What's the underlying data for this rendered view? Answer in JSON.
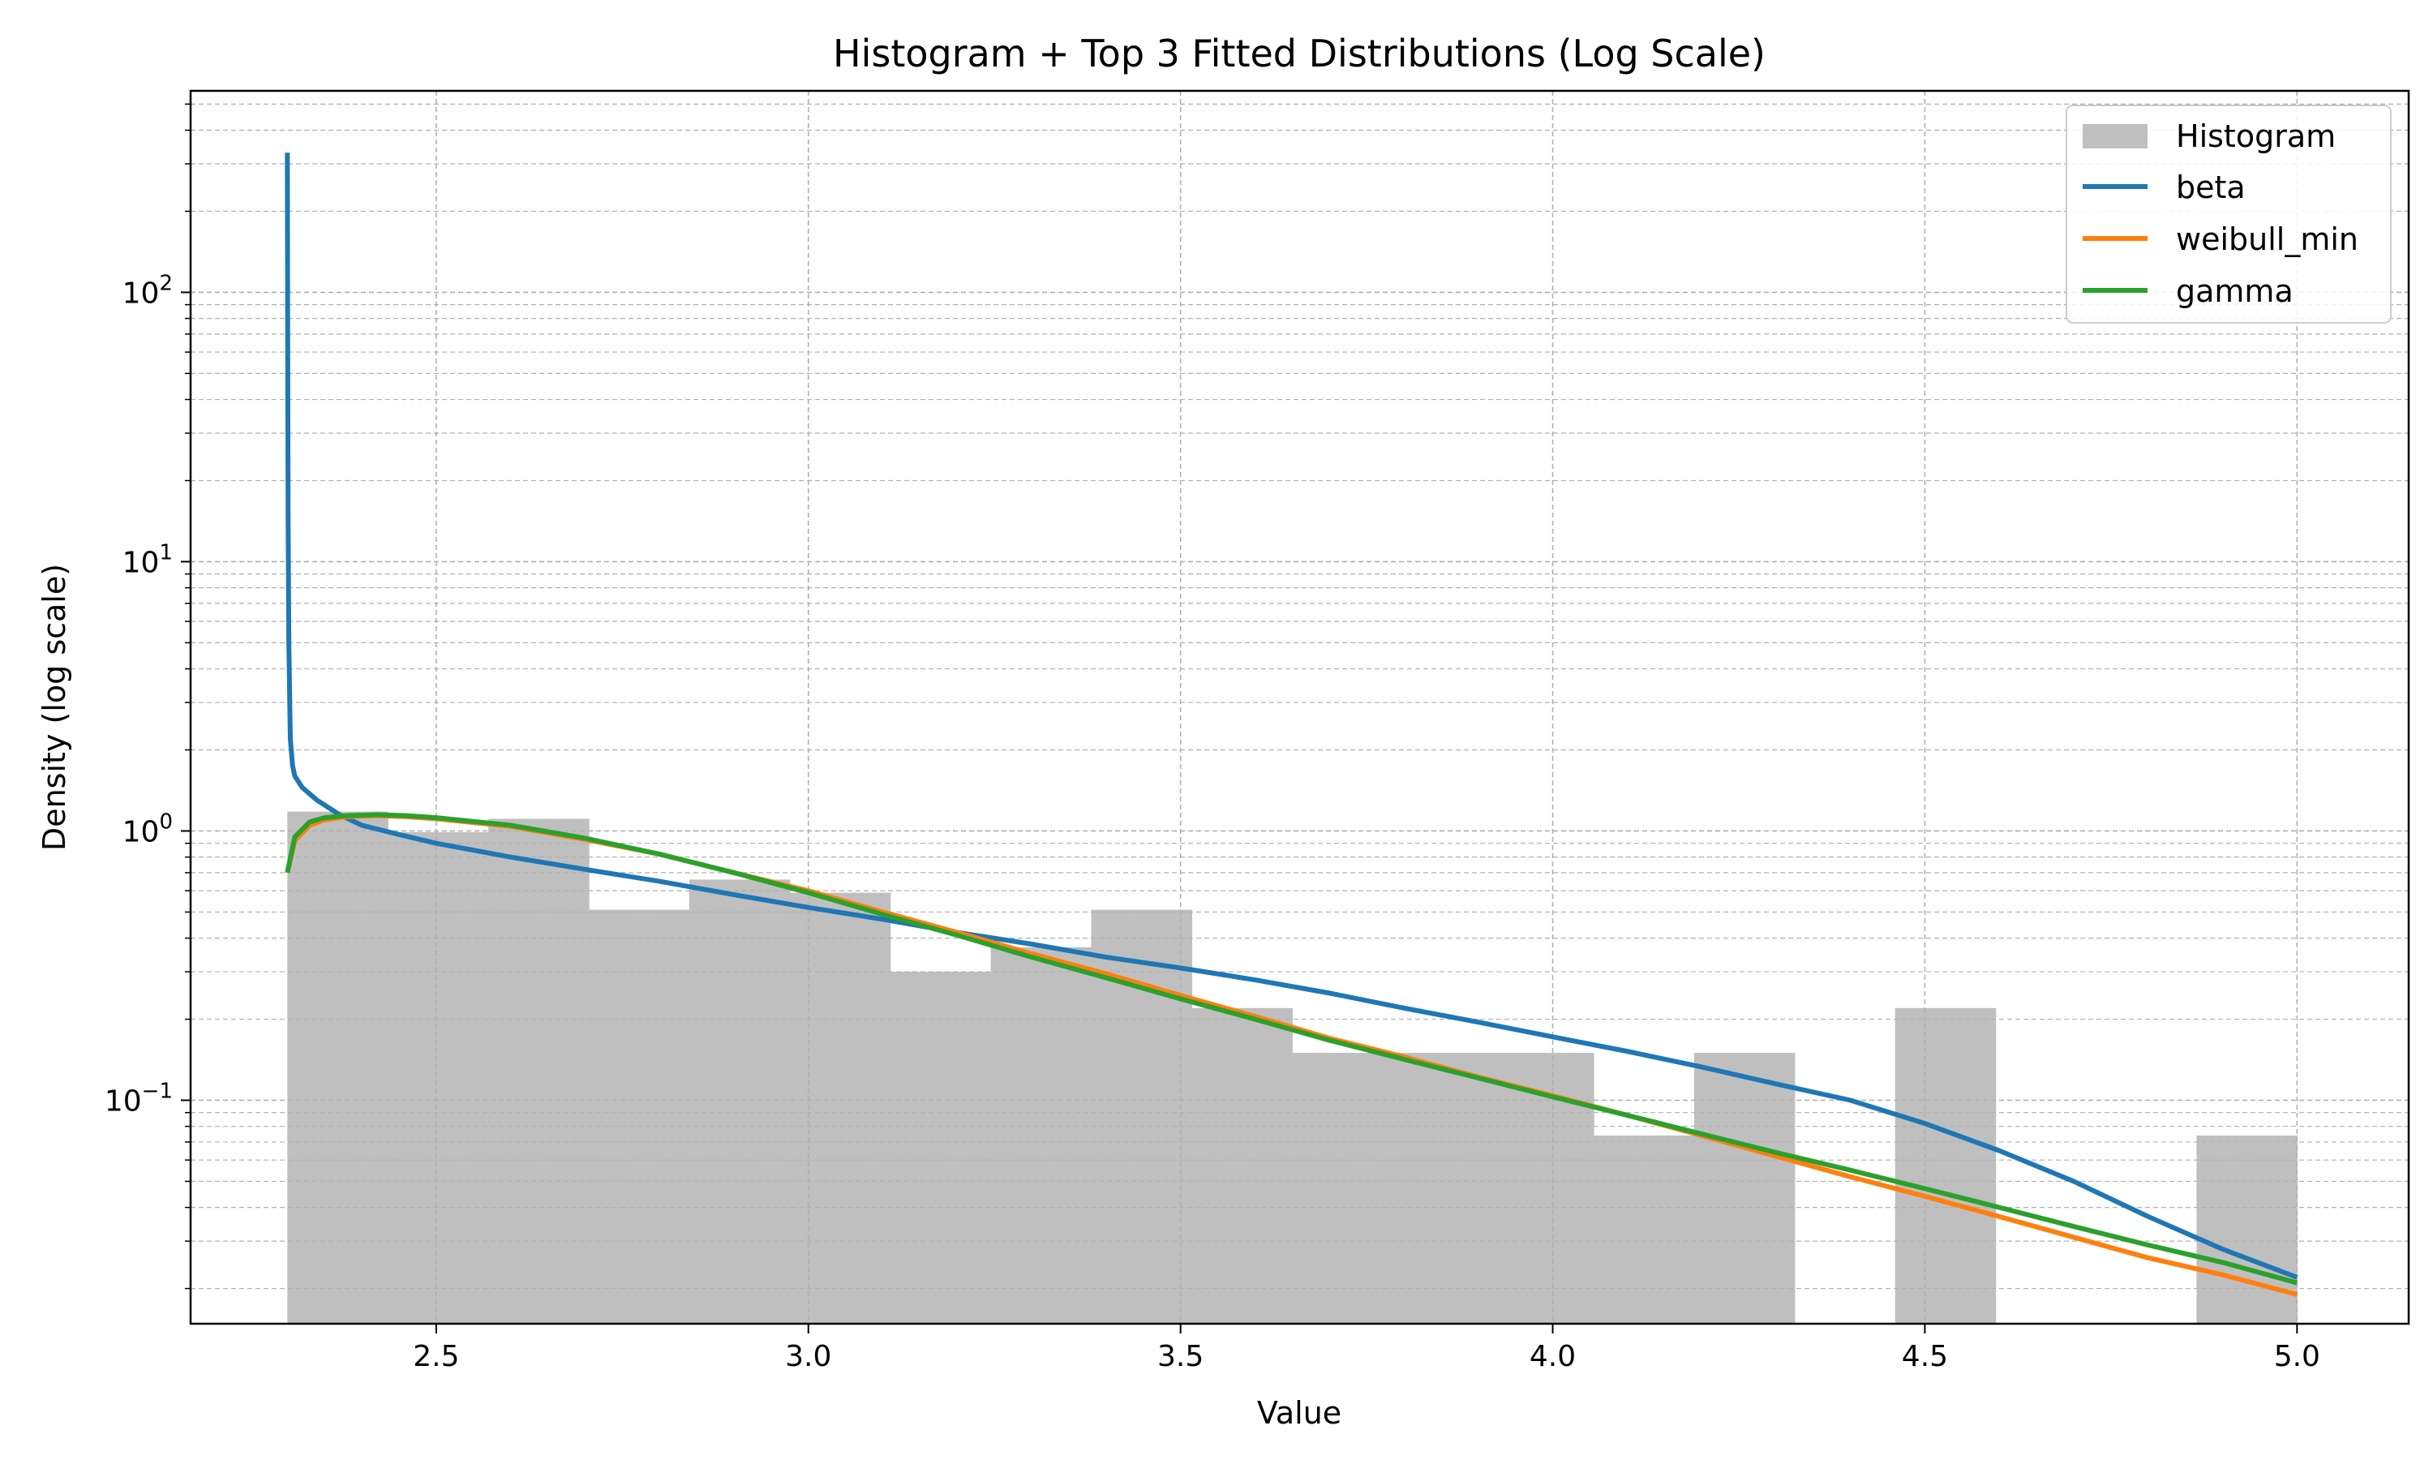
{
  "chart_data": {
    "type": "bar",
    "title": "Histogram + Top 3 Fitted Distributions (Log Scale)",
    "xlabel": "Value",
    "ylabel": "Density (log scale)",
    "xlim": [
      2.17,
      5.15
    ],
    "ylim": [
      0.0148,
      560
    ],
    "yscale": "log",
    "grid": true,
    "legend_position": "top-right",
    "x_ticks": [
      {
        "value": 2.5,
        "label": "2.5"
      },
      {
        "value": 3.0,
        "label": "3.0"
      },
      {
        "value": 3.5,
        "label": "3.5"
      },
      {
        "value": 4.0,
        "label": "4.0"
      },
      {
        "value": 4.5,
        "label": "4.5"
      },
      {
        "value": 5.0,
        "label": "5.0"
      }
    ],
    "y_ticks": [
      {
        "value": 0.1,
        "base": "10",
        "exp": "−1"
      },
      {
        "value": 1,
        "base": "10",
        "exp": "0"
      },
      {
        "value": 10,
        "base": "10",
        "exp": "1"
      },
      {
        "value": 100,
        "base": "10",
        "exp": "2"
      }
    ],
    "histogram": {
      "name": "Histogram",
      "color": "#bfbfbf",
      "bin_edges": [
        2.3,
        2.435,
        2.57,
        2.705,
        2.84,
        2.975,
        3.11,
        3.245,
        3.38,
        3.515,
        3.65,
        3.785,
        3.92,
        4.055,
        4.19,
        4.325,
        4.46,
        4.595,
        4.73,
        4.865,
        5.0
      ],
      "values": [
        1.18,
        0.99,
        1.11,
        0.51,
        0.66,
        0.59,
        0.3,
        0.37,
        0.51,
        0.22,
        0.15,
        0.15,
        0.15,
        0.074,
        0.15,
        0.0,
        0.22,
        0.0,
        0.0,
        0.074
      ]
    },
    "series": [
      {
        "name": "beta",
        "color": "#1f77b4",
        "x": [
          2.3,
          2.3005,
          2.301,
          2.302,
          2.304,
          2.307,
          2.31,
          2.32,
          2.34,
          2.37,
          2.4,
          2.45,
          2.5,
          2.6,
          2.7,
          2.8,
          2.9,
          3.0,
          3.1,
          3.2,
          3.3,
          3.4,
          3.5,
          3.6,
          3.7,
          3.8,
          3.9,
          4.0,
          4.1,
          4.2,
          4.3,
          4.4,
          4.5,
          4.6,
          4.7,
          4.8,
          4.9,
          5.0
        ],
        "y": [
          330,
          60,
          15,
          5,
          2.2,
          1.75,
          1.6,
          1.45,
          1.3,
          1.15,
          1.05,
          0.97,
          0.9,
          0.8,
          0.72,
          0.65,
          0.58,
          0.52,
          0.47,
          0.42,
          0.38,
          0.34,
          0.31,
          0.28,
          0.25,
          0.22,
          0.195,
          0.172,
          0.152,
          0.133,
          0.115,
          0.1,
          0.082,
          0.065,
          0.05,
          0.037,
          0.028,
          0.022
        ]
      },
      {
        "name": "weibull_min",
        "color": "#ff7f0e",
        "x": [
          2.3,
          2.31,
          2.33,
          2.35,
          2.38,
          2.42,
          2.46,
          2.5,
          2.6,
          2.7,
          2.8,
          2.9,
          3.0,
          3.1,
          3.2,
          3.3,
          3.4,
          3.5,
          3.6,
          3.7,
          3.8,
          3.9,
          4.0,
          4.1,
          4.2,
          4.3,
          4.4,
          4.5,
          4.6,
          4.7,
          4.8,
          4.9,
          5.0
        ],
        "y": [
          0.7,
          0.92,
          1.05,
          1.1,
          1.13,
          1.14,
          1.13,
          1.11,
          1.04,
          0.93,
          0.82,
          0.7,
          0.6,
          0.5,
          0.42,
          0.35,
          0.295,
          0.245,
          0.205,
          0.17,
          0.145,
          0.122,
          0.104,
          0.088,
          0.074,
          0.062,
          0.052,
          0.044,
          0.037,
          0.031,
          0.026,
          0.0225,
          0.019
        ]
      },
      {
        "name": "gamma",
        "color": "#2ca02c",
        "x": [
          2.3,
          2.31,
          2.33,
          2.35,
          2.38,
          2.42,
          2.46,
          2.5,
          2.6,
          2.7,
          2.8,
          2.9,
          3.0,
          3.1,
          3.2,
          3.3,
          3.4,
          3.5,
          3.6,
          3.7,
          3.8,
          3.9,
          4.0,
          4.1,
          4.2,
          4.3,
          4.4,
          4.5,
          4.6,
          4.7,
          4.8,
          4.9,
          5.0
        ],
        "y": [
          0.7,
          0.95,
          1.08,
          1.12,
          1.14,
          1.15,
          1.14,
          1.12,
          1.05,
          0.94,
          0.82,
          0.7,
          0.59,
          0.49,
          0.41,
          0.34,
          0.285,
          0.238,
          0.2,
          0.167,
          0.142,
          0.121,
          0.103,
          0.088,
          0.075,
          0.064,
          0.055,
          0.047,
          0.04,
          0.034,
          0.029,
          0.025,
          0.021
        ]
      }
    ]
  }
}
